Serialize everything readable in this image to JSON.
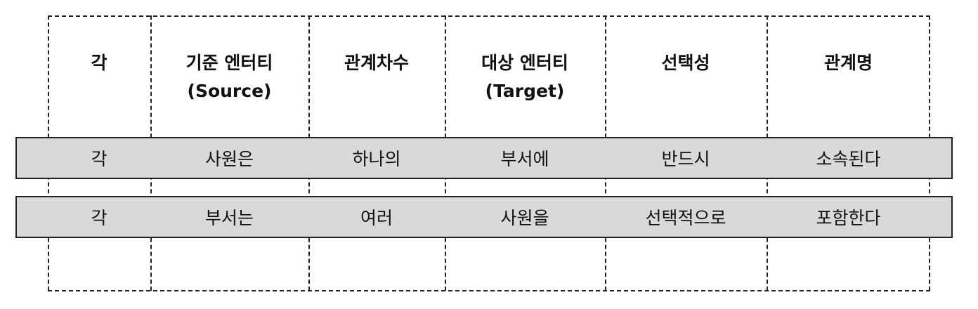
{
  "table": {
    "headers": [
      {
        "line1": "각",
        "line2": ""
      },
      {
        "line1": "기준 엔터티",
        "line2": "(Source)"
      },
      {
        "line1": "관계차수",
        "line2": ""
      },
      {
        "line1": "대상 엔터티",
        "line2": "(Target)"
      },
      {
        "line1": "선택성",
        "line2": ""
      },
      {
        "line1": "관계명",
        "line2": ""
      }
    ],
    "rows": [
      [
        "각",
        "사원은",
        "하나의",
        "부서에",
        "반드시",
        "소속된다"
      ],
      [
        "각",
        "부서는",
        "여러",
        "사원을",
        "선택적으로",
        "포함한다"
      ]
    ]
  }
}
